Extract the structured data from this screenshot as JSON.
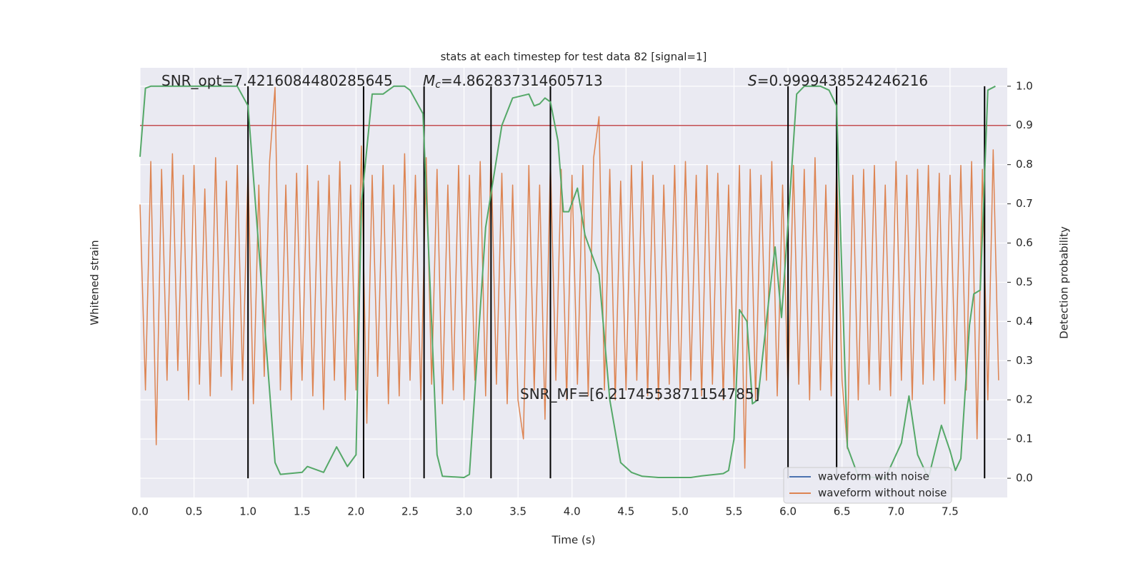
{
  "chart_data": {
    "type": "line",
    "title": "stats at each timestep for test data 82 [signal=1]",
    "x_label": "Time (s)",
    "y_label": "Whitened strain",
    "y2_label": "Detection probability",
    "xlim": [
      0,
      8.03
    ],
    "xticks": [
      {
        "value": 0,
        "label": "0.0"
      },
      0.5,
      {
        "value": 1,
        "label": "1.0"
      },
      1.5,
      {
        "value": 2,
        "label": "2.0"
      },
      2.5,
      {
        "value": 3,
        "label": "3.0"
      },
      3.5,
      {
        "value": 4,
        "label": "4.0"
      },
      4.5,
      {
        "value": 5,
        "label": "5.0"
      },
      5.5,
      {
        "value": 6,
        "label": "6.0"
      },
      6.5,
      {
        "value": 7,
        "label": "7.0"
      },
      7.5
    ],
    "ylim": [
      -1.1,
      1.1
    ],
    "y2lim": [
      -0.049,
      1.047
    ],
    "y2ticks": [
      {
        "value": 0,
        "label": "0.0"
      },
      0.1,
      0.2,
      0.3,
      0.4,
      0.5,
      0.6,
      0.7,
      0.8,
      0.9,
      {
        "value": 1,
        "label": "1.0"
      }
    ],
    "grid": true,
    "legend_position": "lower right",
    "legend": [
      {
        "name": "waveform with noise",
        "color": "#4c72b0"
      },
      {
        "name": "waveform without noise",
        "color": "#dd8452"
      }
    ],
    "strain": {
      "color": "#dd8452",
      "x": [
        0,
        0.05,
        0.1,
        0.15,
        0.2,
        0.25,
        0.3,
        0.35,
        0.4,
        0.45,
        0.5,
        0.55,
        0.6,
        0.65,
        0.7,
        0.75,
        0.8,
        0.85,
        0.9,
        0.95,
        1,
        1.05,
        1.1,
        1.15,
        1.2,
        1.25,
        1.3,
        1.35,
        1.4,
        1.45,
        1.5,
        1.55,
        1.6,
        1.65,
        1.7,
        1.75,
        1.8,
        1.85,
        1.9,
        1.95,
        2,
        2.05,
        2.1,
        2.15,
        2.2,
        2.25,
        2.3,
        2.35,
        2.4,
        2.45,
        2.5,
        2.55,
        2.6,
        2.65,
        2.7,
        2.75,
        2.8,
        2.85,
        2.9,
        2.95,
        3,
        3.05,
        3.1,
        3.15,
        3.2,
        3.25,
        3.3,
        3.35,
        3.4,
        3.45,
        3.5,
        3.55,
        3.6,
        3.65,
        3.7,
        3.75,
        3.8,
        3.85,
        3.9,
        3.95,
        4,
        4.05,
        4.1,
        4.15,
        4.2,
        4.25,
        4.3,
        4.35,
        4.4,
        4.45,
        4.5,
        4.55,
        4.6,
        4.65,
        4.7,
        4.75,
        4.8,
        4.85,
        4.9,
        4.95,
        5,
        5.05,
        5.1,
        5.15,
        5.2,
        5.25,
        5.3,
        5.35,
        5.4,
        5.45,
        5.5,
        5.55,
        5.6,
        5.65,
        5.7,
        5.75,
        5.8,
        5.85,
        5.9,
        5.95,
        6,
        6.05,
        6.1,
        6.15,
        6.2,
        6.25,
        6.3,
        6.35,
        6.4,
        6.45,
        6.5,
        6.55,
        6.6,
        6.65,
        6.7,
        6.75,
        6.8,
        6.85,
        6.9,
        6.95,
        7,
        7.05,
        7.1,
        7.15,
        7.2,
        7.25,
        7.3,
        7.35,
        7.4,
        7.45,
        7.5,
        7.55,
        7.6,
        7.65,
        7.7,
        7.75,
        7.8,
        7.85,
        7.9,
        7.95
      ],
      "values": [
        0.4,
        -0.55,
        0.62,
        -0.83,
        0.58,
        -0.5,
        0.66,
        -0.45,
        0.55,
        -0.6,
        0.6,
        -0.52,
        0.48,
        -0.58,
        0.64,
        -0.48,
        0.52,
        -0.55,
        0.6,
        -0.5,
        0.58,
        -0.62,
        0.5,
        -0.48,
        0.62,
        1.0,
        -0.55,
        0.5,
        -0.6,
        0.56,
        -0.5,
        0.6,
        -0.58,
        0.52,
        -0.65,
        0.55,
        -0.5,
        0.62,
        -0.6,
        0.5,
        -0.55,
        0.7,
        -0.72,
        0.55,
        -0.48,
        0.6,
        -0.62,
        0.5,
        -0.58,
        0.66,
        -0.5,
        0.55,
        -0.6,
        0.64,
        -0.52,
        0.58,
        -0.62,
        0.5,
        -0.55,
        0.6,
        -0.6,
        0.55,
        -0.5,
        0.62,
        -0.58,
        0.68,
        -0.52,
        0.56,
        -0.62,
        0.5,
        -0.6,
        -0.8,
        0.6,
        -0.55,
        0.5,
        -0.7,
        0.62,
        -0.5,
        0.58,
        -0.6,
        0.55,
        -0.52,
        0.6,
        -0.58,
        0.64,
        0.85,
        -0.55,
        0.58,
        -0.6,
        0.52,
        -0.55,
        0.6,
        -0.5,
        0.62,
        -0.58,
        0.55,
        -0.6,
        0.5,
        -0.52,
        0.6,
        -0.55,
        0.62,
        -0.5,
        0.55,
        -0.58,
        0.6,
        -0.52,
        0.56,
        -0.6,
        0.5,
        -0.55,
        0.6,
        -0.95,
        0.58,
        -0.6,
        0.55,
        -0.5,
        0.62,
        -0.58,
        0.5,
        -0.55,
        0.6,
        -0.52,
        0.58,
        -0.6,
        0.64,
        -0.55,
        0.5,
        -0.58,
        0.6,
        -0.5,
        -0.85,
        0.55,
        -0.6,
        0.58,
        -0.52,
        0.6,
        -0.55,
        0.5,
        -0.58,
        0.62,
        -0.5,
        0.55,
        -0.6,
        0.58,
        -0.52,
        0.6,
        -0.5,
        0.56,
        -0.62,
        0.55,
        -0.5,
        0.6,
        -0.55,
        0.62,
        -0.8,
        0.58,
        -0.6,
        0.68,
        -0.5
      ]
    },
    "probability": {
      "color": "#55a868",
      "axis": "y2",
      "x": [
        0,
        0.05,
        0.1,
        0.9,
        1.0,
        1.25,
        1.3,
        1.5,
        1.55,
        1.7,
        1.82,
        1.92,
        2.0,
        2.05,
        2.15,
        2.25,
        2.35,
        2.45,
        2.5,
        2.62,
        2.75,
        2.8,
        3.0,
        3.05,
        3.2,
        3.35,
        3.45,
        3.6,
        3.65,
        3.7,
        3.75,
        3.8,
        3.87,
        3.92,
        3.97,
        4.05,
        4.12,
        4.25,
        4.35,
        4.45,
        4.55,
        4.65,
        4.8,
        5.1,
        5.2,
        5.4,
        5.45,
        5.5,
        5.55,
        5.62,
        5.67,
        5.72,
        5.82,
        5.88,
        5.94,
        6.0,
        6.08,
        6.15,
        6.3,
        6.38,
        6.45,
        6.55,
        6.65,
        6.9,
        7.05,
        7.12,
        7.2,
        7.3,
        7.42,
        7.5,
        7.55,
        7.6,
        7.68,
        7.72,
        7.78,
        7.85,
        7.92
      ],
      "values": [
        0.82,
        0.995,
        1.0,
        1.0,
        0.95,
        0.04,
        0.01,
        0.015,
        0.03,
        0.015,
        0.08,
        0.03,
        0.06,
        0.7,
        0.98,
        0.98,
        1.0,
        1.0,
        0.99,
        0.93,
        0.06,
        0.005,
        0.002,
        0.01,
        0.64,
        0.9,
        0.97,
        0.98,
        0.95,
        0.955,
        0.97,
        0.96,
        0.86,
        0.68,
        0.68,
        0.74,
        0.62,
        0.52,
        0.2,
        0.04,
        0.015,
        0.005,
        0.002,
        0.002,
        0.006,
        0.012,
        0.02,
        0.1,
        0.43,
        0.4,
        0.19,
        0.2,
        0.45,
        0.59,
        0.41,
        0.65,
        0.98,
        1.0,
        1.0,
        0.99,
        0.95,
        0.08,
        0.005,
        0.0,
        0.09,
        0.21,
        0.06,
        0.0,
        0.135,
        0.07,
        0.02,
        0.05,
        0.39,
        0.47,
        0.48,
        0.99,
        1.0
      ]
    },
    "threshold": {
      "value": 0.9,
      "color": "#c44e52"
    },
    "vlines": {
      "x": [
        1.0,
        2.07,
        2.63,
        3.25,
        3.8,
        6.0,
        6.45,
        7.82
      ],
      "span": [
        0,
        1
      ],
      "color": "#000000"
    },
    "annotations": [
      {
        "text": "SNR_opt=7.4216084480285645"
      },
      {
        "symbol": "M",
        "subscript": "c",
        "text": "=4.862837314605713"
      },
      {
        "symbol": "S",
        "text": "=0.9999438524246216"
      },
      {
        "text": "SNR_MF=[6.2174553871154785]"
      }
    ]
  }
}
